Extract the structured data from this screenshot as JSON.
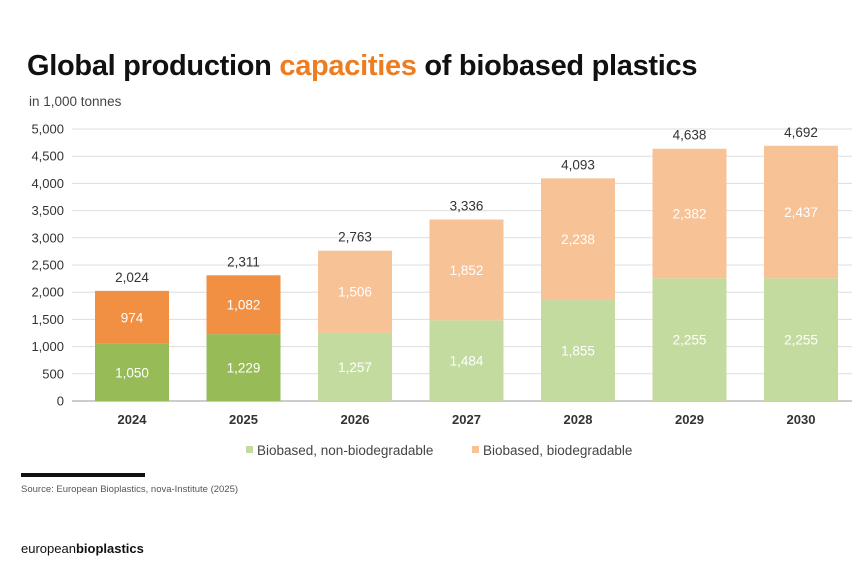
{
  "title": {
    "part1": "Global production ",
    "highlight": "capacities",
    "part2": " of biobased plastics"
  },
  "chart_data": {
    "type": "bar",
    "stacked": true,
    "ylabel": "in 1,000 tonnes",
    "ylim": [
      0,
      5000
    ],
    "yticks": [
      "0",
      "500",
      "1,000",
      "1,500",
      "2,000",
      "2,500",
      "3,000",
      "3,500",
      "4,000",
      "4,500",
      "5,000"
    ],
    "grid": true,
    "legend_position": "bottom-right",
    "categories": [
      "2024",
      "2025",
      "2026",
      "2027",
      "2028",
      "2029",
      "2030"
    ],
    "series": [
      {
        "name": "Biobased, non-biodegradable",
        "values": [
          1050,
          1229,
          1257,
          1484,
          1855,
          2255,
          2255
        ],
        "labels": [
          "1,050",
          "1,229",
          "1,257",
          "1,484",
          "1,855",
          "2,255",
          "2,255"
        ],
        "color": "#c4dba0",
        "highlight_color": "#96bb57"
      },
      {
        "name": "Biobased, biodegradable",
        "values": [
          974,
          1082,
          1506,
          1852,
          2238,
          2382,
          2437
        ],
        "labels": [
          "974",
          "1,082",
          "1,506",
          "1,852",
          "2,238",
          "2,382",
          "2,437"
        ],
        "color": "#f8c297",
        "highlight_color": "#f18f42"
      }
    ],
    "totals": [
      "2,024",
      "2,311",
      "2,763",
      "3,336",
      "4,093",
      "4,638",
      "4,692"
    ],
    "highlighted_categories": [
      "2024",
      "2025"
    ]
  },
  "footer": {
    "source": "Source: European Bioplastics, nova-Institute (2025)",
    "logo_light": "european",
    "logo_bold": "bioplastics"
  }
}
